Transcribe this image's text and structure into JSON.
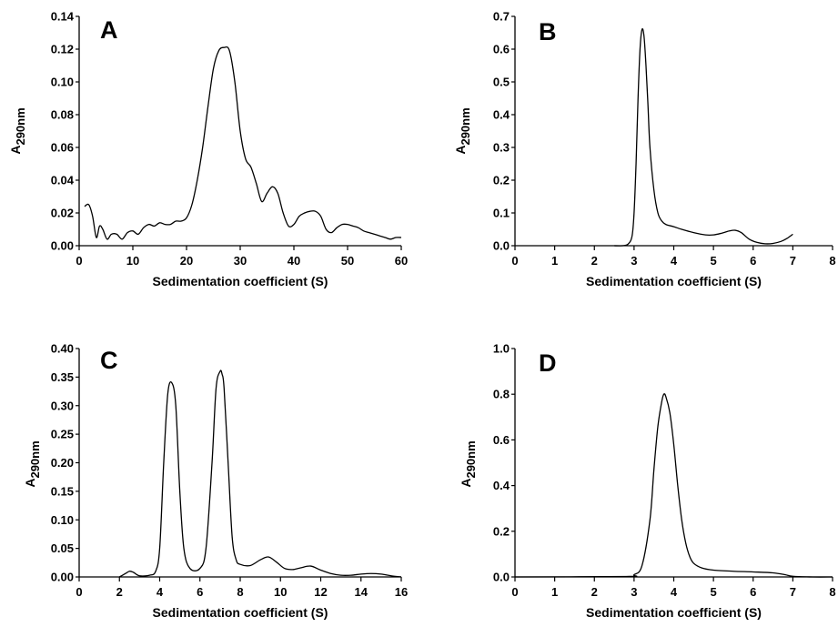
{
  "chart_data": [
    {
      "type": "line",
      "panel_label": "A",
      "xlabel": "Sedimentation coefficient (S)",
      "ylabel_main": "A",
      "ylabel_sub": "290nm",
      "xlim": [
        0,
        60
      ],
      "ylim": [
        0,
        0.14
      ],
      "xticks": [
        0,
        10,
        20,
        30,
        40,
        50,
        60
      ],
      "yticks": [
        0.0,
        0.02,
        0.04,
        0.06,
        0.08,
        0.1,
        0.12,
        0.14
      ],
      "xtick_labels": [
        "0",
        "10",
        "20",
        "30",
        "40",
        "50",
        "60"
      ],
      "ytick_labels": [
        "0.00",
        "0.02",
        "0.04",
        "0.06",
        "0.08",
        "0.10",
        "0.12",
        "0.14"
      ],
      "grid": false,
      "series": [
        {
          "x": [
            1,
            1.8,
            2.5,
            3.2,
            3.8,
            4.4,
            5.2,
            6,
            7,
            8,
            9,
            10,
            11,
            12,
            13,
            14,
            15,
            16,
            17,
            18,
            19,
            20,
            21,
            22,
            23,
            24,
            25,
            26,
            27,
            28,
            29,
            30,
            31,
            32,
            33,
            34,
            35,
            36,
            37,
            38,
            39,
            40,
            41,
            42,
            43,
            44,
            45,
            46,
            47,
            48,
            49,
            50,
            51,
            52,
            53,
            54,
            55,
            56,
            57,
            58,
            59,
            60
          ],
          "y": [
            0.024,
            0.025,
            0.018,
            0.005,
            0.012,
            0.01,
            0.004,
            0.007,
            0.007,
            0.004,
            0.008,
            0.009,
            0.007,
            0.011,
            0.013,
            0.012,
            0.014,
            0.013,
            0.013,
            0.015,
            0.015,
            0.017,
            0.025,
            0.04,
            0.06,
            0.085,
            0.108,
            0.119,
            0.121,
            0.119,
            0.1,
            0.07,
            0.053,
            0.048,
            0.038,
            0.027,
            0.032,
            0.036,
            0.032,
            0.02,
            0.012,
            0.013,
            0.018,
            0.02,
            0.021,
            0.021,
            0.018,
            0.01,
            0.008,
            0.011,
            0.013,
            0.013,
            0.012,
            0.011,
            0.009,
            0.008,
            0.007,
            0.006,
            0.005,
            0.004,
            0.005,
            0.005
          ]
        }
      ]
    },
    {
      "type": "line",
      "panel_label": "B",
      "xlabel": "Sedimentation coefficient (S)",
      "ylabel_main": "A",
      "ylabel_sub": "290nm",
      "xlim": [
        0,
        8
      ],
      "ylim": [
        0,
        0.7
      ],
      "xticks": [
        0,
        1,
        2,
        3,
        4,
        5,
        6,
        7,
        8
      ],
      "yticks": [
        0.0,
        0.1,
        0.2,
        0.3,
        0.4,
        0.5,
        0.6,
        0.7
      ],
      "xtick_labels": [
        "0",
        "1",
        "2",
        "3",
        "4",
        "5",
        "6",
        "7",
        "8"
      ],
      "ytick_labels": [
        "0.0",
        "0.1",
        "0.2",
        "0.3",
        "0.4",
        "0.5",
        "0.6",
        "0.7"
      ],
      "grid": false,
      "series": [
        {
          "x": [
            2.5,
            2.7,
            2.85,
            2.95,
            3.0,
            3.05,
            3.1,
            3.15,
            3.2,
            3.25,
            3.3,
            3.35,
            3.4,
            3.5,
            3.6,
            3.7,
            3.8,
            4.0,
            4.2,
            4.5,
            4.8,
            5.0,
            5.2,
            5.4,
            5.55,
            5.7,
            5.9,
            6.1,
            6.3,
            6.5,
            6.7,
            6.85,
            7.0
          ],
          "y": [
            0.0,
            0.0,
            0.005,
            0.03,
            0.1,
            0.25,
            0.45,
            0.6,
            0.66,
            0.64,
            0.55,
            0.43,
            0.3,
            0.17,
            0.1,
            0.075,
            0.065,
            0.058,
            0.05,
            0.04,
            0.033,
            0.033,
            0.038,
            0.045,
            0.047,
            0.04,
            0.02,
            0.01,
            0.006,
            0.007,
            0.013,
            0.022,
            0.035
          ]
        }
      ]
    },
    {
      "type": "line",
      "panel_label": "C",
      "xlabel": "Sedimentation coefficient (S)",
      "ylabel_main": "A",
      "ylabel_sub": "290nm",
      "xlim": [
        0,
        16
      ],
      "ylim": [
        0,
        0.4
      ],
      "xticks": [
        0,
        2,
        4,
        6,
        8,
        10,
        12,
        14,
        16
      ],
      "yticks": [
        0.0,
        0.05,
        0.1,
        0.15,
        0.2,
        0.25,
        0.3,
        0.35,
        0.4
      ],
      "xtick_labels": [
        "0",
        "2",
        "4",
        "6",
        "8",
        "10",
        "12",
        "14",
        "16"
      ],
      "ytick_labels": [
        "0.00",
        "0.05",
        "0.10",
        "0.15",
        "0.20",
        "0.25",
        "0.30",
        "0.35",
        "0.40"
      ],
      "grid": false,
      "series": [
        {
          "x": [
            2.0,
            2.3,
            2.5,
            2.7,
            3.0,
            3.5,
            3.8,
            4.0,
            4.2,
            4.4,
            4.6,
            4.8,
            5.0,
            5.2,
            5.5,
            6.0,
            6.3,
            6.6,
            6.8,
            7.0,
            7.1,
            7.2,
            7.4,
            7.6,
            7.8,
            8.0,
            8.5,
            9.0,
            9.4,
            9.8,
            10.2,
            10.6,
            11.0,
            11.5,
            12.0,
            12.5,
            13.0,
            13.5,
            14.0,
            14.5,
            15.0,
            15.5,
            16.0
          ],
          "y": [
            0.0,
            0.006,
            0.01,
            0.008,
            0.002,
            0.003,
            0.01,
            0.05,
            0.2,
            0.32,
            0.34,
            0.3,
            0.15,
            0.05,
            0.015,
            0.015,
            0.05,
            0.2,
            0.33,
            0.36,
            0.355,
            0.33,
            0.2,
            0.07,
            0.03,
            0.022,
            0.02,
            0.03,
            0.035,
            0.026,
            0.015,
            0.013,
            0.016,
            0.019,
            0.012,
            0.006,
            0.003,
            0.003,
            0.005,
            0.006,
            0.005,
            0.002,
            0.0
          ]
        }
      ]
    },
    {
      "type": "line",
      "panel_label": "D",
      "xlabel": "Sedimentation coefficient (S)",
      "ylabel_main": "A",
      "ylabel_sub": "290nm",
      "xlim": [
        0,
        8
      ],
      "ylim": [
        0,
        1.0
      ],
      "xticks": [
        0,
        1,
        2,
        3,
        4,
        5,
        6,
        7,
        8
      ],
      "yticks": [
        0.0,
        0.2,
        0.4,
        0.6,
        0.8,
        1.0
      ],
      "xtick_labels": [
        "0",
        "1",
        "2",
        "3",
        "4",
        "5",
        "6",
        "7",
        "8"
      ],
      "ytick_labels": [
        "0.0",
        "0.2",
        "0.4",
        "0.6",
        "0.8",
        "1.0"
      ],
      "grid": false,
      "series": [
        {
          "x": [
            0.0,
            2.8,
            3.0,
            3.2,
            3.4,
            3.5,
            3.6,
            3.7,
            3.75,
            3.8,
            3.9,
            4.0,
            4.1,
            4.2,
            4.3,
            4.4,
            4.5,
            4.7,
            5.0,
            5.5,
            6.0,
            6.5,
            6.8,
            7.0,
            7.5,
            8.0
          ],
          "y": [
            0.0,
            0.002,
            0.01,
            0.05,
            0.25,
            0.47,
            0.66,
            0.77,
            0.8,
            0.79,
            0.72,
            0.58,
            0.4,
            0.25,
            0.15,
            0.09,
            0.06,
            0.04,
            0.03,
            0.025,
            0.022,
            0.018,
            0.01,
            0.003,
            0.0,
            0.0
          ]
        }
      ]
    }
  ]
}
